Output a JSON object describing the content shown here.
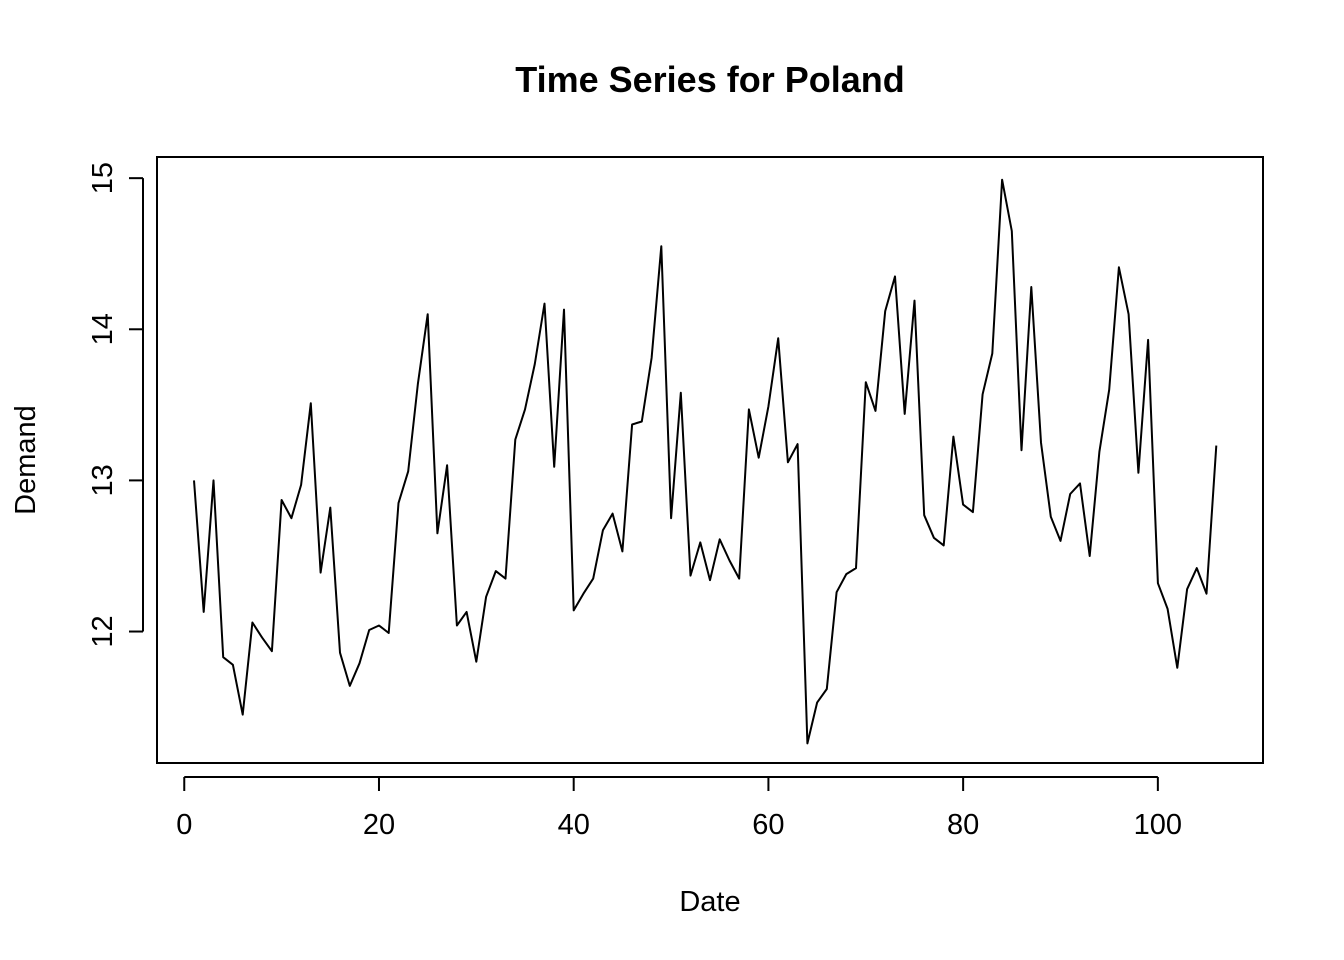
{
  "chart_data": {
    "type": "line",
    "title": "Time Series for Poland",
    "xlabel": "Date",
    "ylabel": "Demand",
    "xlim": [
      -2.8,
      110.8
    ],
    "ylim": [
      11.13,
      15.14
    ],
    "x_ticks": [
      0,
      20,
      40,
      60,
      80,
      100
    ],
    "y_ticks": [
      12,
      13,
      14,
      15
    ],
    "grid": false,
    "legend": "none",
    "color": "#000000",
    "series": [
      {
        "x": [
          1,
          2,
          3,
          4,
          5,
          6,
          7,
          8,
          9,
          10,
          11,
          12,
          13,
          14,
          15,
          16,
          17,
          18,
          19,
          20,
          21,
          22,
          23,
          24,
          25,
          26,
          27,
          28,
          29,
          30,
          31,
          32,
          33,
          34,
          35,
          36,
          37,
          38,
          39,
          40,
          41,
          42,
          43,
          44,
          45,
          46,
          47,
          48,
          49,
          50,
          51,
          52,
          53,
          54,
          55,
          56,
          57,
          58,
          59,
          60,
          61,
          62,
          63,
          64,
          65,
          66,
          67,
          68,
          69,
          70,
          71,
          72,
          73,
          74,
          75,
          76,
          77,
          78,
          79,
          80,
          81,
          82,
          83,
          84,
          85,
          86,
          87,
          88,
          89,
          90,
          91,
          92,
          93,
          94,
          95,
          96,
          97,
          98,
          99,
          100,
          101,
          102,
          103,
          104,
          105,
          106
        ],
        "y": [
          13.0,
          12.13,
          13.0,
          11.83,
          11.78,
          11.45,
          12.06,
          11.96,
          11.87,
          12.87,
          12.75,
          12.97,
          13.51,
          12.39,
          12.82,
          11.86,
          11.64,
          11.79,
          12.01,
          12.04,
          11.99,
          12.85,
          13.06,
          13.64,
          14.1,
          12.65,
          13.1,
          12.04,
          12.13,
          11.8,
          12.23,
          12.4,
          12.35,
          13.27,
          13.47,
          13.77,
          14.17,
          13.09,
          14.13,
          12.14,
          12.25,
          12.35,
          12.67,
          12.78,
          12.53,
          13.37,
          13.39,
          13.81,
          14.55,
          12.75,
          13.58,
          12.37,
          12.59,
          12.34,
          12.61,
          12.47,
          12.35,
          13.47,
          13.15,
          13.49,
          13.94,
          13.12,
          13.24,
          11.26,
          11.53,
          11.62,
          12.26,
          12.38,
          12.42,
          13.65,
          13.46,
          14.12,
          14.35,
          13.44,
          14.19,
          12.77,
          12.62,
          12.57,
          13.29,
          12.84,
          12.79,
          13.57,
          13.84,
          14.99,
          14.65,
          13.2,
          14.28,
          13.25,
          12.76,
          12.6,
          12.91,
          12.98,
          12.5,
          13.19,
          13.6,
          14.41,
          14.1,
          13.05,
          13.93,
          12.32,
          12.15,
          11.76,
          12.28,
          12.42,
          12.25,
          13.23
        ]
      }
    ]
  }
}
